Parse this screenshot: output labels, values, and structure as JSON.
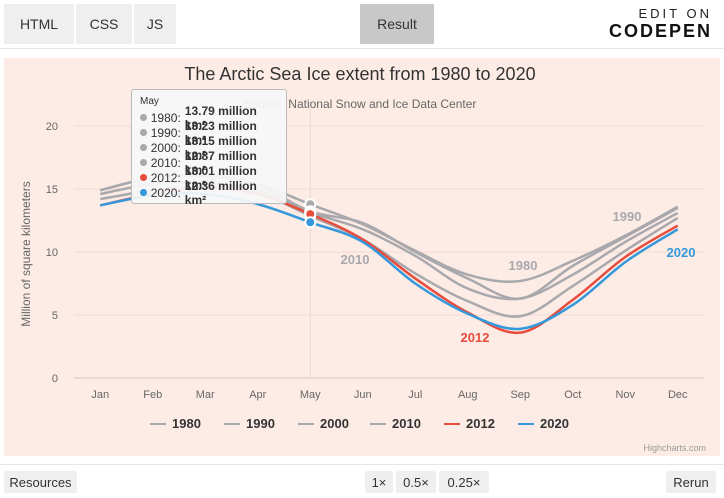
{
  "editor": {
    "tabs": [
      {
        "label": "HTML"
      },
      {
        "label": "CSS"
      },
      {
        "label": "JS"
      }
    ],
    "result_label": "Result",
    "brand_top": "EDIT ON",
    "brand_bottom": "CODEPEN"
  },
  "bottom": {
    "resources_label": "Resources",
    "zoom_options": [
      "1×",
      "0.5×",
      "0.25×"
    ],
    "rerun_label": "Rerun"
  },
  "chart_data": {
    "type": "line",
    "title": "The Arctic Sea Ice extent from 1980 to 2020",
    "subtitle": "Source: National Snow and Ice Data Center",
    "ylabel": "Million of square kilometers",
    "xlabel": "",
    "ylim": [
      0,
      20
    ],
    "yticks": [
      0,
      5,
      10,
      15,
      20
    ],
    "categories": [
      "Jan",
      "Feb",
      "Mar",
      "Apr",
      "May",
      "Jun",
      "Jul",
      "Aug",
      "Sep",
      "Oct",
      "Nov",
      "Dec"
    ],
    "series": [
      {
        "name": "1980",
        "color": "#a8a8ad",
        "values": [
          14.9,
          15.9,
          16.1,
          15.4,
          13.79,
          12.2,
          10.1,
          8.2,
          7.7,
          9.3,
          11.3,
          13.6
        ]
      },
      {
        "name": "1990",
        "color": "#a8a8ad",
        "values": [
          14.9,
          15.9,
          16.0,
          15.3,
          13.23,
          12.3,
          10.0,
          7.9,
          6.3,
          8.9,
          11.2,
          13.5
        ]
      },
      {
        "name": "2000",
        "color": "#a8a8ad",
        "values": [
          14.6,
          15.4,
          15.5,
          14.9,
          13.15,
          11.8,
          9.7,
          7.1,
          6.3,
          8.2,
          10.8,
          13.1
        ]
      },
      {
        "name": "2010",
        "color": "#a8a8ad",
        "values": [
          14.2,
          14.9,
          15.2,
          14.7,
          12.87,
          11.0,
          8.3,
          6.1,
          4.9,
          7.3,
          10.1,
          12.7
        ]
      },
      {
        "name": "2012",
        "color": "#e74c3c",
        "values": [
          13.7,
          14.6,
          15.1,
          14.6,
          13.01,
          11.0,
          7.9,
          5.2,
          3.6,
          6.2,
          9.6,
          12.1
        ]
      },
      {
        "name": "2020",
        "color": "#3498db",
        "values": [
          13.7,
          14.5,
          14.6,
          13.8,
          12.36,
          10.8,
          7.5,
          5.1,
          3.9,
          5.8,
          9.2,
          11.8
        ]
      }
    ],
    "annotations": [
      {
        "text": "2010",
        "color": "#a8a8ad"
      },
      {
        "text": "1980",
        "color": "#a8a8ad"
      },
      {
        "text": "1990",
        "color": "#a8a8ad"
      },
      {
        "text": "2012",
        "color": "#e74c3c"
      },
      {
        "text": "2020",
        "color": "#3498db"
      }
    ],
    "tooltip": {
      "month": "May",
      "rows": [
        {
          "label": "1980:",
          "value": "13.79 million km²",
          "color": "#a8a8ad"
        },
        {
          "label": "1990:",
          "value": "13.23 million km²",
          "color": "#a8a8ad"
        },
        {
          "label": "2000:",
          "value": "13.15 million km²",
          "color": "#a8a8ad"
        },
        {
          "label": "2010:",
          "value": "12.87 million km²",
          "color": "#a8a8ad"
        },
        {
          "label": "2012:",
          "value": "13.01 million km²",
          "color": "#e74c3c"
        },
        {
          "label": "2020:",
          "value": "12.36 million km²",
          "color": "#3498db"
        }
      ]
    },
    "credits": "Highcharts.com",
    "colors": {
      "background": "#fdece6",
      "grid": "#f1d9d2",
      "axis_text": "#666666"
    }
  }
}
